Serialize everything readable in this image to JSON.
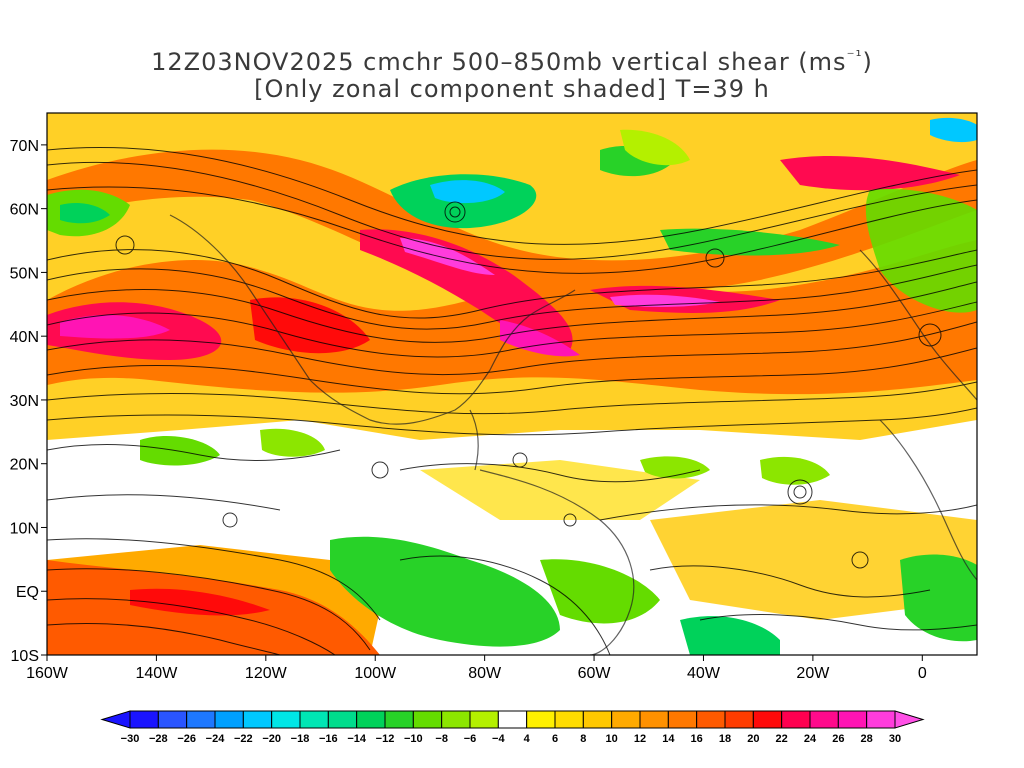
{
  "title": {
    "line1_prefix": "12Z03NOV2025 cmchr 500–850mb vertical shear (ms",
    "line1_sup": "⁻¹",
    "line1_suffix": ")",
    "line2": "[Only zonal component shaded] T=39 h"
  },
  "map": {
    "y_ticks": [
      "70N",
      "60N",
      "50N",
      "40N",
      "30N",
      "20N",
      "10N",
      "EQ",
      "10S"
    ],
    "x_ticks": [
      "160W",
      "140W",
      "120W",
      "100W",
      "80W",
      "60W",
      "40W",
      "20W",
      "0"
    ],
    "lon_range": [
      -160,
      10
    ],
    "lat_range": [
      -10,
      75
    ]
  },
  "colorbar": {
    "labels": [
      "-30",
      "-28",
      "-26",
      "-24",
      "-22",
      "-20",
      "-18",
      "-16",
      "-14",
      "-12",
      "-10",
      "-8",
      "-6",
      "-4",
      "4",
      "6",
      "8",
      "10",
      "12",
      "14",
      "16",
      "18",
      "20",
      "22",
      "24",
      "26",
      "28",
      "30"
    ],
    "colors": [
      "#1a14ff",
      "#2a55ff",
      "#1e78ff",
      "#00a0ff",
      "#00c8ff",
      "#00e6e6",
      "#00e6b4",
      "#00dc8c",
      "#00d25a",
      "#28d228",
      "#64dc00",
      "#8ce600",
      "#b4f000",
      "#ffffff",
      "#fff000",
      "#ffdc00",
      "#ffc800",
      "#ffaa00",
      "#ff9100",
      "#ff7800",
      "#ff5a00",
      "#ff3c00",
      "#ff0a0a",
      "#ff0050",
      "#ff0a8c",
      "#ff14b4",
      "#ff3cdc"
    ],
    "left_arrow_color": "#1a14ff",
    "right_arrow_color": "#ff50e6"
  }
}
